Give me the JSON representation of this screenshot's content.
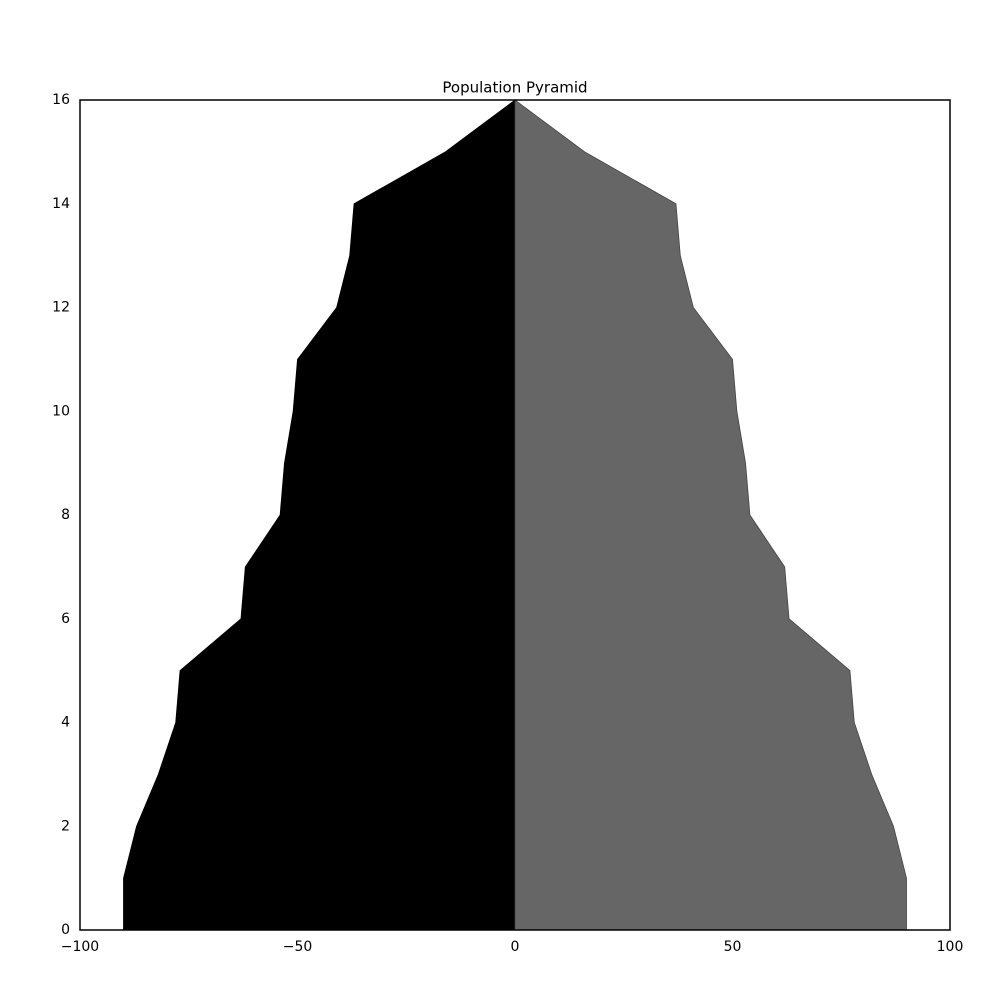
{
  "chart_data": {
    "type": "area",
    "orientation": "horizontal",
    "title": "Population Pyramid",
    "y": [
      0,
      1,
      2,
      3,
      4,
      5,
      6,
      7,
      8,
      9,
      10,
      11,
      12,
      13,
      14,
      15,
      16
    ],
    "series": [
      {
        "color": "#000000",
        "values": [
          -90,
          -90,
          -87,
          -82,
          -78,
          -77,
          -63,
          -62,
          -54,
          -53,
          -51,
          -50,
          -41,
          -38,
          -37,
          -16,
          0
        ]
      },
      {
        "color": "#666666",
        "values": [
          90,
          90,
          87,
          82,
          78,
          77,
          63,
          62,
          54,
          53,
          51,
          50,
          41,
          38,
          37,
          16,
          0
        ]
      }
    ],
    "xlim": [
      -100,
      100
    ],
    "xticks": [
      {
        "value": -100,
        "label": "−100"
      },
      {
        "value": -50,
        "label": "−50"
      },
      0,
      50,
      100
    ],
    "ylim": [
      0,
      16
    ],
    "yticks": [
      0,
      2,
      4,
      6,
      8,
      10,
      12,
      14,
      16
    ]
  }
}
